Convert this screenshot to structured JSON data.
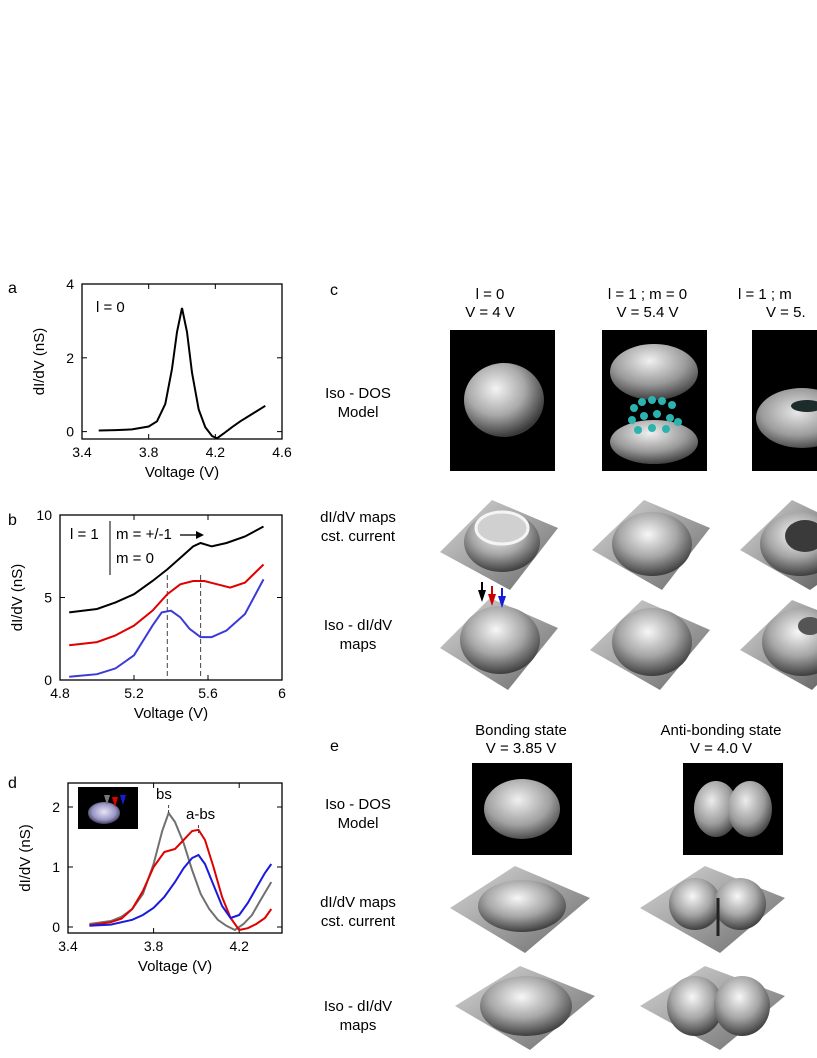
{
  "panel_letters": {
    "a": "a",
    "b": "b",
    "c": "c",
    "d": "d",
    "e": "e"
  },
  "chart_data": [
    {
      "type": "line",
      "panel": "a",
      "xlabel": "Voltage (V)",
      "ylabel": "dI/dV (nS)",
      "annotation": "l = 0",
      "xlim": [
        3.4,
        4.6
      ],
      "ylim": [
        -0.2,
        4
      ],
      "xticks": [
        "3.4",
        "3.8",
        "4.2",
        "4.6"
      ],
      "yticks": [
        "0",
        "2",
        "4"
      ],
      "series": [
        {
          "color": "#000000",
          "x": [
            3.5,
            3.6,
            3.7,
            3.8,
            3.85,
            3.9,
            3.94,
            3.97,
            4.0,
            4.03,
            4.06,
            4.1,
            4.14,
            4.18,
            4.21,
            4.25,
            4.3,
            4.35,
            4.4,
            4.45,
            4.5
          ],
          "y": [
            0.03,
            0.04,
            0.06,
            0.14,
            0.28,
            0.75,
            1.7,
            2.7,
            3.35,
            2.7,
            1.6,
            0.6,
            0.12,
            -0.12,
            -0.18,
            -0.05,
            0.12,
            0.28,
            0.42,
            0.56,
            0.7
          ]
        }
      ]
    },
    {
      "type": "line",
      "panel": "b",
      "xlabel": "Voltage (V)",
      "ylabel": "dI/dV (nS)",
      "annotations": [
        "l = 1",
        "m = +/-1",
        "m = 0"
      ],
      "xlim": [
        4.8,
        6
      ],
      "ylim": [
        0,
        10
      ],
      "xticks": [
        "4.8",
        "5.2",
        "5.6",
        "6"
      ],
      "yticks": [
        "0",
        "5",
        "10"
      ],
      "dashed_markers_x": [
        5.38,
        5.56
      ],
      "series": [
        {
          "color": "#000000",
          "x": [
            4.85,
            5.0,
            5.1,
            5.2,
            5.3,
            5.38,
            5.45,
            5.52,
            5.56,
            5.62,
            5.7,
            5.8,
            5.9
          ],
          "y": [
            4.1,
            4.3,
            4.7,
            5.2,
            6.0,
            6.7,
            7.4,
            8.1,
            8.3,
            8.1,
            8.3,
            8.7,
            9.3
          ]
        },
        {
          "color": "#e00000",
          "x": [
            4.85,
            5.0,
            5.1,
            5.2,
            5.3,
            5.38,
            5.45,
            5.52,
            5.58,
            5.65,
            5.72,
            5.8,
            5.9
          ],
          "y": [
            2.1,
            2.3,
            2.7,
            3.3,
            4.2,
            5.2,
            5.8,
            6.0,
            6.0,
            5.8,
            5.6,
            5.9,
            7.0
          ]
        },
        {
          "color": "#3a3ad8",
          "x": [
            4.85,
            5.0,
            5.1,
            5.2,
            5.3,
            5.35,
            5.4,
            5.45,
            5.5,
            5.56,
            5.62,
            5.7,
            5.8,
            5.9
          ],
          "y": [
            0.2,
            0.35,
            0.7,
            1.5,
            3.3,
            4.1,
            4.2,
            3.8,
            3.1,
            2.6,
            2.6,
            3.0,
            4.0,
            6.1
          ]
        }
      ]
    },
    {
      "type": "line",
      "panel": "d",
      "xlabel": "Voltage (V)",
      "ylabel": "dI/dV (nS)",
      "annotations": [
        "bs",
        "a-bs"
      ],
      "xlim": [
        3.4,
        4.4
      ],
      "ylim": [
        -0.1,
        2.4
      ],
      "xticks": [
        "3.4",
        "3.8",
        "4.2"
      ],
      "yticks": [
        "0",
        "1",
        "2"
      ],
      "series": [
        {
          "color": "#707070",
          "x": [
            3.5,
            3.6,
            3.65,
            3.7,
            3.75,
            3.8,
            3.84,
            3.87,
            3.9,
            3.94,
            3.98,
            4.02,
            4.06,
            4.1,
            4.14,
            4.18,
            4.22,
            4.26,
            4.3,
            4.35
          ],
          "y": [
            0.05,
            0.1,
            0.17,
            0.3,
            0.55,
            1.05,
            1.6,
            1.9,
            1.75,
            1.4,
            0.95,
            0.55,
            0.3,
            0.12,
            0.02,
            -0.05,
            0.05,
            0.2,
            0.45,
            0.75
          ]
        },
        {
          "color": "#e00000",
          "x": [
            3.5,
            3.6,
            3.65,
            3.7,
            3.75,
            3.8,
            3.85,
            3.9,
            3.94,
            3.98,
            4.01,
            4.04,
            4.08,
            4.12,
            4.16,
            4.2,
            4.24,
            4.28,
            4.32,
            4.35
          ],
          "y": [
            0.03,
            0.08,
            0.14,
            0.3,
            0.6,
            1.0,
            1.25,
            1.3,
            1.45,
            1.6,
            1.62,
            1.45,
            1.0,
            0.5,
            0.15,
            -0.05,
            -0.02,
            0.05,
            0.15,
            0.3
          ]
        },
        {
          "color": "#1a1add",
          "x": [
            3.5,
            3.6,
            3.7,
            3.75,
            3.8,
            3.85,
            3.9,
            3.94,
            3.98,
            4.01,
            4.04,
            4.08,
            4.12,
            4.16,
            4.2,
            4.24,
            4.28,
            4.32,
            4.35
          ],
          "y": [
            0.02,
            0.04,
            0.12,
            0.2,
            0.32,
            0.5,
            0.75,
            0.98,
            1.15,
            1.2,
            1.05,
            0.7,
            0.35,
            0.15,
            0.2,
            0.4,
            0.65,
            0.9,
            1.05
          ]
        }
      ]
    }
  ],
  "panel_c": {
    "columns": [
      {
        "line1": "l = 0",
        "line2": "V = 4 V"
      },
      {
        "line1": "l = 1 ; m = 0",
        "line2": "V = 5.4 V"
      },
      {
        "line1": "l = 1 ; m",
        "line2": "V = 5."
      }
    ],
    "rows": [
      {
        "line1": "Iso - DOS",
        "line2": "Model"
      },
      {
        "line1": "dI/dV maps",
        "line2": "cst. current"
      },
      {
        "line1": "Iso - dI/dV",
        "line2": "maps"
      }
    ]
  },
  "panel_e": {
    "columns": [
      {
        "line1": "Bonding state",
        "line2": "V = 3.85 V"
      },
      {
        "line1": "Anti-bonding state",
        "line2": "V = 4.0 V"
      }
    ],
    "rows": [
      {
        "line1": "Iso - DOS",
        "line2": "Model"
      },
      {
        "line1": "dI/dV maps",
        "line2": "cst. current"
      },
      {
        "line1": "Iso - dI/dV",
        "line2": "maps"
      }
    ]
  },
  "colors": {
    "black_curve": "#000000",
    "red_curve": "#e00000",
    "blue_curve": "#3a3ad8",
    "gray_curve": "#707070"
  }
}
